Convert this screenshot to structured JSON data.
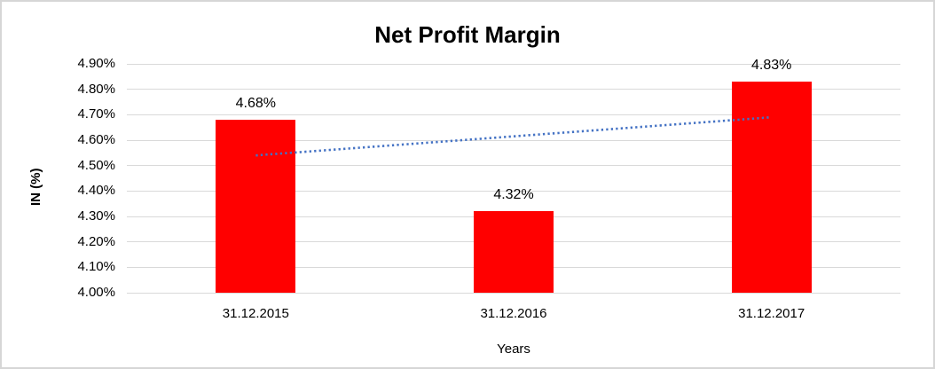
{
  "chart_data": {
    "type": "bar",
    "title": "Net Profit Margin",
    "categories": [
      "31.12.2015",
      "31.12.2016",
      "31.12.2017"
    ],
    "values": [
      4.68,
      4.32,
      4.83
    ],
    "value_labels": [
      "4.68%",
      "4.32%",
      "4.83%"
    ],
    "xlabel": "Years",
    "ylabel": "IN (%)",
    "ylim": [
      4.0,
      4.9
    ],
    "ytick_step": 0.1,
    "ytick_labels": [
      "4.00%",
      "4.10%",
      "4.20%",
      "4.30%",
      "4.40%",
      "4.50%",
      "4.60%",
      "4.70%",
      "4.80%",
      "4.90%"
    ],
    "grid": true,
    "legend": "none",
    "bar_color": "#FF0000",
    "gridline_color": "#D9D9D9",
    "text_color": "#000000",
    "background_color": "#FFFFFF",
    "border_color": "#D6D6D6",
    "trendline": {
      "style": "dotted",
      "color": "#4472C4",
      "start_value": 4.54,
      "end_value": 4.69
    }
  }
}
